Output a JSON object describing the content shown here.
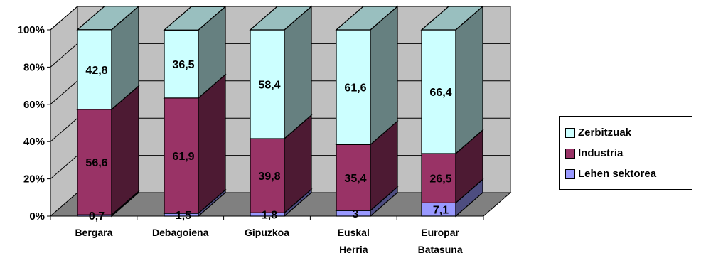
{
  "chart_data": {
    "type": "bar",
    "stacked": true,
    "percent_stacked": true,
    "three_d": true,
    "categories": [
      [
        "Bergara"
      ],
      [
        "Debagoiena"
      ],
      [
        "Gipuzkoa"
      ],
      [
        "Euskal",
        "Herria"
      ],
      [
        "Europar",
        "Batasuna"
      ]
    ],
    "series": [
      {
        "name": "Lehen sektorea",
        "values": [
          0.7,
          1.5,
          1.8,
          3,
          7.1
        ],
        "labels": [
          "0,7",
          "1,5",
          "1,8",
          "3",
          "7,1"
        ],
        "color": "#9999FF"
      },
      {
        "name": "Industria",
        "values": [
          56.6,
          61.9,
          39.8,
          35.4,
          26.5
        ],
        "labels": [
          "56,6",
          "61,9",
          "39,8",
          "35,4",
          "26,5"
        ],
        "color": "#993366"
      },
      {
        "name": "Zerbitzuak",
        "values": [
          42.8,
          36.5,
          58.4,
          61.6,
          66.4
        ],
        "labels": [
          "42,8",
          "36,5",
          "58,4",
          "61,6",
          "66,4"
        ],
        "color": "#CCFFFF"
      }
    ],
    "y_ticks": [
      "0%",
      "20%",
      "40%",
      "60%",
      "80%",
      "100%"
    ],
    "ylim": [
      0,
      100
    ],
    "grid": true,
    "wall_color": "#C0C0C0",
    "floor_color": "#808080",
    "legend_position": "right"
  }
}
